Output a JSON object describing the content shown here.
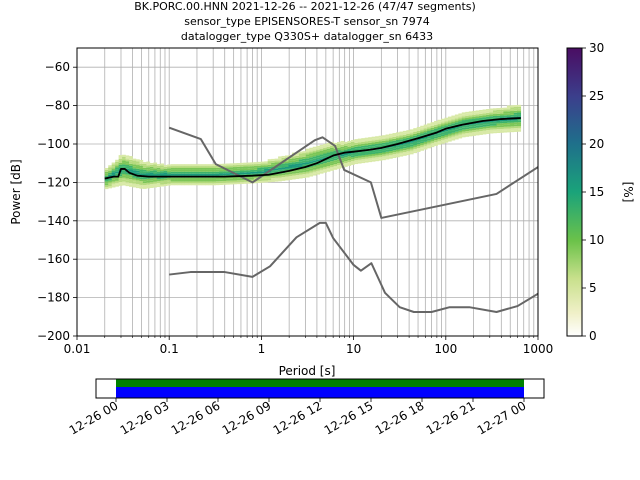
{
  "title_lines": [
    "BK.PORC.00.HNN   2021-12-26 -- 2021-12-26  (47/47 segments)",
    "sensor_type EPISENSORES-T sensor_sn 7974",
    "datalogger_type Q330S+ datalogger_sn 6433"
  ],
  "chart_data": [
    {
      "type": "heatmap",
      "xlabel": "Period [s]",
      "ylabel": "Power [dB]",
      "x_scale": "log",
      "xlim": [
        0.01,
        1000
      ],
      "ylim": [
        -200,
        -50
      ],
      "x_ticks": [
        0.01,
        0.1,
        1,
        10,
        100,
        1000
      ],
      "x_tick_labels": [
        "0.01",
        "0.1",
        "1",
        "10",
        "100",
        "1000"
      ],
      "y_ticks": [
        -200,
        -180,
        -160,
        -140,
        -120,
        -100,
        -80,
        -60
      ],
      "y_tick_labels": [
        "−200",
        "−180",
        "−160",
        "−140",
        "−120",
        "−100",
        "−80",
        "−60"
      ],
      "grid": true,
      "colorbar": {
        "label": "[%]",
        "range": [
          0,
          30
        ],
        "ticks": [
          "0",
          "5",
          "10",
          "15",
          "20",
          "25",
          "30"
        ],
        "colormap": "pqlx"
      },
      "series": [
        {
          "name": "mean",
          "color": "#000000",
          "points": [
            [
              0.02,
              -118
            ],
            [
              0.025,
              -117
            ],
            [
              0.028,
              -117
            ],
            [
              0.03,
              -113
            ],
            [
              0.033,
              -113
            ],
            [
              0.037,
              -115
            ],
            [
              0.045,
              -116.5
            ],
            [
              0.06,
              -117
            ],
            [
              0.1,
              -117
            ],
            [
              0.2,
              -117
            ],
            [
              0.4,
              -117
            ],
            [
              0.8,
              -116.5
            ],
            [
              1.2,
              -116
            ],
            [
              2,
              -114
            ],
            [
              3,
              -112
            ],
            [
              4,
              -110
            ],
            [
              6,
              -106
            ],
            [
              8,
              -104.5
            ],
            [
              10,
              -104
            ],
            [
              15,
              -103
            ],
            [
              20,
              -102
            ],
            [
              30,
              -100
            ],
            [
              50,
              -97
            ],
            [
              80,
              -94
            ],
            [
              100,
              -92
            ],
            [
              150,
              -90
            ],
            [
              250,
              -88
            ],
            [
              400,
              -87
            ],
            [
              650,
              -86.5
            ]
          ]
        },
        {
          "name": "high noise model",
          "color": "#666666",
          "points": [
            [
              0.1,
              -91.5
            ],
            [
              0.22,
              -97.4
            ],
            [
              0.32,
              -110.5
            ],
            [
              0.8,
              -120
            ],
            [
              3.8,
              -98
            ],
            [
              4.6,
              -96.5
            ],
            [
              6.3,
              -101
            ],
            [
              7.9,
              -113.5
            ],
            [
              15.4,
              -120
            ],
            [
              20,
              -138.5
            ],
            [
              354.8,
              -126
            ],
            [
              1000,
              -112
            ]
          ]
        },
        {
          "name": "low noise model",
          "color": "#666666",
          "points": [
            [
              0.1,
              -168
            ],
            [
              0.17,
              -166.7
            ],
            [
              0.4,
              -166.7
            ],
            [
              0.8,
              -169.2
            ],
            [
              1.24,
              -163.7
            ],
            [
              2.4,
              -148.6
            ],
            [
              4.3,
              -141.1
            ],
            [
              5,
              -141.1
            ],
            [
              6,
              -149
            ],
            [
              10,
              -163
            ],
            [
              12,
              -166
            ],
            [
              15.6,
              -162.1
            ],
            [
              21.9,
              -177.5
            ],
            [
              31.6,
              -185
            ],
            [
              45,
              -187.5
            ],
            [
              70,
              -187.5
            ],
            [
              110,
              -185
            ],
            [
              180,
              -185
            ],
            [
              354.8,
              -187.5
            ],
            [
              600,
              -184.4
            ],
            [
              1000,
              -178
            ]
          ]
        }
      ],
      "density_band": {
        "description": "probabilistic PSD histogram",
        "points": [
          [
            0.02,
            -118,
            5
          ],
          [
            0.03,
            -113,
            8
          ],
          [
            0.05,
            -116,
            7
          ],
          [
            0.1,
            -116,
            5
          ],
          [
            0.3,
            -116,
            5
          ],
          [
            0.8,
            -115,
            5
          ],
          [
            1.5,
            -113,
            6
          ],
          [
            3,
            -110,
            7
          ],
          [
            6,
            -106,
            7
          ],
          [
            10,
            -104,
            6
          ],
          [
            20,
            -102,
            6
          ],
          [
            40,
            -99,
            6
          ],
          [
            80,
            -94,
            6
          ],
          [
            150,
            -90,
            6
          ],
          [
            300,
            -88,
            6
          ],
          [
            650,
            -86,
            7
          ]
        ]
      }
    },
    {
      "type": "bar",
      "description": "data coverage timeline",
      "x_tick_labels": [
        "12-26 00",
        "12-26 03",
        "12-26 06",
        "12-26 09",
        "12-26 12",
        "12-26 15",
        "12-26 18",
        "12-26 21",
        "12-27 00"
      ],
      "coverage_hours": [
        0,
        24
      ],
      "bands": [
        {
          "color": "#008000"
        },
        {
          "color": "#0000ff"
        }
      ]
    }
  ]
}
